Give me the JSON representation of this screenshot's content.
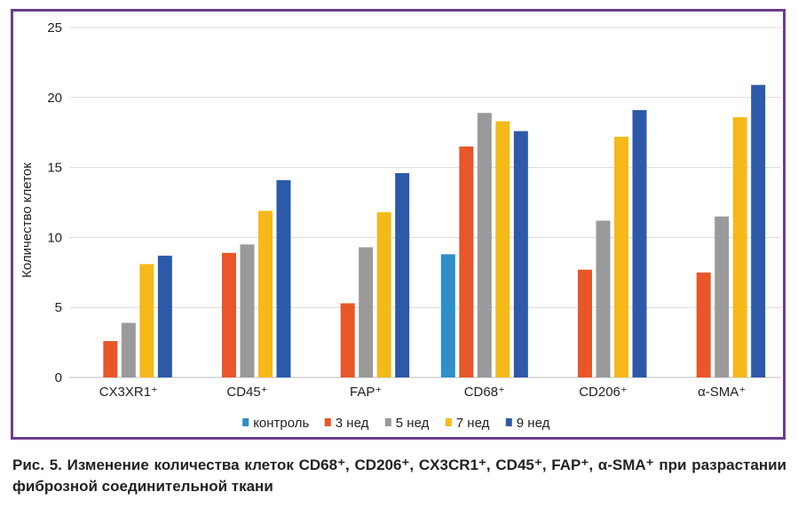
{
  "caption": "Рис. 5. Изменение количества клеток CD68⁺, CD206⁺, CX3CR1⁺, CD45⁺, FAP⁺, α-SMA⁺ при разрастании фиброзной соединительной ткани",
  "chart_data": {
    "type": "bar",
    "title": "",
    "xlabel": "",
    "ylabel": "Количество клеток",
    "ylim": [
      0,
      25
    ],
    "yticks": [
      "0",
      "5",
      "10",
      "15",
      "20",
      "25"
    ],
    "grid": true,
    "legend_position": "bottom",
    "categories": [
      "CX3XR1⁺",
      "CD45⁺",
      "FAP⁺",
      "CD68⁺",
      "CD206⁺",
      "α-SMA⁺"
    ],
    "series": [
      {
        "name": "контроль",
        "color": "#2e8fc9",
        "values": [
          0,
          0,
          0,
          8.8,
          0,
          0
        ]
      },
      {
        "name": "3 нед",
        "color": "#e8562a",
        "values": [
          2.6,
          8.9,
          5.3,
          16.5,
          7.7,
          7.5
        ]
      },
      {
        "name": "5 нед",
        "color": "#9a9a9a",
        "values": [
          3.9,
          9.5,
          9.3,
          18.9,
          11.2,
          11.5
        ]
      },
      {
        "name": "7 нед",
        "color": "#f5b91a",
        "values": [
          8.1,
          11.9,
          11.8,
          18.3,
          17.2,
          18.6
        ]
      },
      {
        "name": "9 нед",
        "color": "#2c5aa8",
        "values": [
          8.7,
          14.1,
          14.6,
          17.6,
          19.1,
          20.9
        ]
      }
    ]
  }
}
